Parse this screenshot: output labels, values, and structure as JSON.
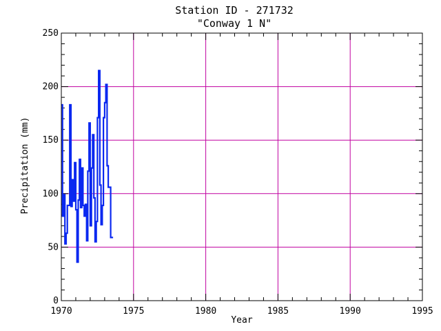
{
  "chart_data": {
    "type": "line",
    "title": "Station ID - 271732",
    "subtitle": "\"Conway 1 N\"",
    "xlabel": "Year",
    "ylabel": "Precipitation (mm)",
    "xlim": [
      1970,
      1995
    ],
    "ylim": [
      0,
      250
    ],
    "x_ticks": [
      1970,
      1975,
      1980,
      1985,
      1990,
      1995
    ],
    "y_ticks": [
      0,
      50,
      100,
      150,
      200,
      250
    ],
    "x_minor_step": 1,
    "y_minor_step": 10,
    "grid": true,
    "step": true,
    "series": [
      {
        "color": "#0a28f0",
        "x": [
          1970.0,
          1970.083,
          1970.167,
          1970.25,
          1970.333,
          1970.417,
          1970.5,
          1970.583,
          1970.667,
          1970.75,
          1970.833,
          1970.917,
          1971.0,
          1971.083,
          1971.167,
          1971.25,
          1971.333,
          1971.417,
          1971.5,
          1971.583,
          1971.667,
          1971.75,
          1971.833,
          1971.917,
          1972.0,
          1972.083,
          1972.167,
          1972.25,
          1972.333,
          1972.417,
          1972.5,
          1972.583,
          1972.667,
          1972.75,
          1972.833,
          1972.917,
          1973.0,
          1973.083,
          1973.167,
          1973.25,
          1973.333,
          1973.417,
          1973.5,
          1973.583
        ],
        "y": [
          183,
          79,
          99,
          53,
          63,
          89,
          89,
          183,
          88,
          113,
          93,
          129,
          85,
          36,
          94,
          132,
          87,
          124,
          89,
          79,
          90,
          56,
          121,
          166,
          70,
          124,
          155,
          96,
          55,
          74,
          171,
          215,
          108,
          71,
          89,
          171,
          185,
          202,
          126,
          106,
          106,
          59,
          59,
          59
        ]
      }
    ]
  }
}
